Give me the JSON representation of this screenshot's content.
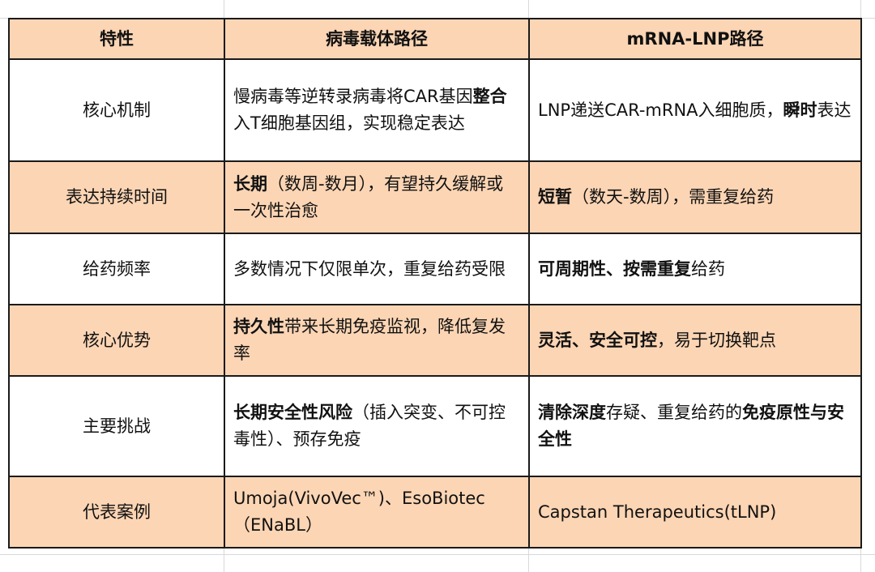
{
  "table": {
    "headers": [
      "特性",
      "病毒载体路径",
      "mRNA-LNP路径"
    ],
    "rows": [
      {
        "feature": "核心机制",
        "viral": [
          {
            "t": "慢病毒等逆转录病毒将CAR基因",
            "b": false
          },
          {
            "t": "整合",
            "b": true
          },
          {
            "t": "入T细胞基因组，实现稳定表达",
            "b": false
          }
        ],
        "lnp": [
          {
            "t": "LNP递送CAR-mRNA入细胞质，",
            "b": false
          },
          {
            "t": "瞬时",
            "b": true
          },
          {
            "t": "表达",
            "b": false
          }
        ]
      },
      {
        "feature": "表达持续时间",
        "viral": [
          {
            "t": "长期",
            "b": true
          },
          {
            "t": "（数周-数月），有望持久缓解或一次性治愈",
            "b": false
          }
        ],
        "lnp": [
          {
            "t": "短暂",
            "b": true
          },
          {
            "t": "（数天-数周），需重复给药",
            "b": false
          }
        ]
      },
      {
        "feature": "给药频率",
        "viral": [
          {
            "t": "多数情况下仅限单次，重复给药受限",
            "b": false
          }
        ],
        "lnp": [
          {
            "t": "可周期性、按需重复",
            "b": true
          },
          {
            "t": "给药",
            "b": false
          }
        ]
      },
      {
        "feature": "核心优势",
        "viral": [
          {
            "t": "持久性",
            "b": true
          },
          {
            "t": "带来长期免疫监视，降低复发率",
            "b": false
          }
        ],
        "lnp": [
          {
            "t": "灵活、安全可控",
            "b": true
          },
          {
            "t": "，易于切换靶点",
            "b": false
          }
        ]
      },
      {
        "feature": "主要挑战",
        "viral": [
          {
            "t": "长期安全性风险",
            "b": true
          },
          {
            "t": "（插入突变、不可控毒性）、预存免疫",
            "b": false
          }
        ],
        "lnp": [
          {
            "t": "清除深度",
            "b": true
          },
          {
            "t": "存疑、重复给药的",
            "b": false
          },
          {
            "t": "免疫原性与安全性",
            "b": true
          }
        ]
      },
      {
        "feature": "代表案例",
        "viral": [
          {
            "t": "Umoja(VivoVec™)、EsoBiotec（ENaBL）",
            "b": false
          }
        ],
        "lnp": [
          {
            "t": "Capstan Therapeutics(tLNP)",
            "b": false
          }
        ]
      }
    ]
  },
  "colors": {
    "peach": "#fcd5b4",
    "border": "#1a1a1a",
    "grid": "#d9d9d9"
  }
}
